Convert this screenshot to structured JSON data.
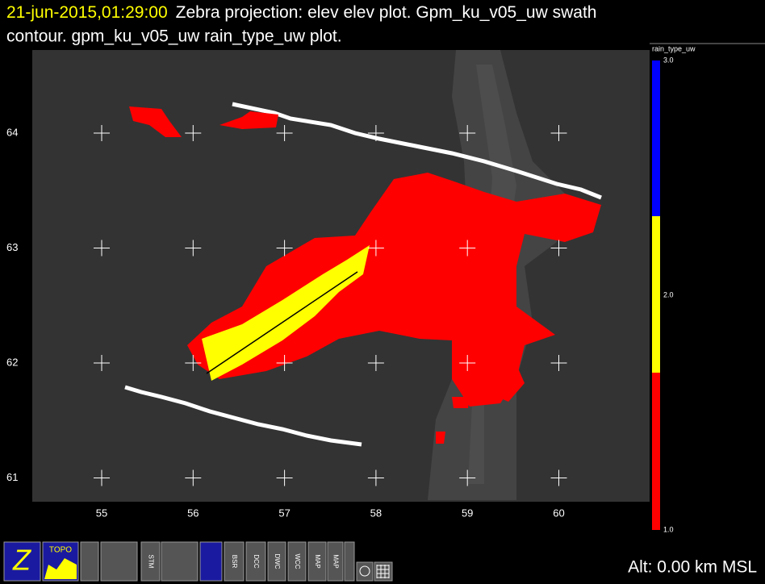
{
  "header": {
    "time": "21-jun-2015,01:29:00",
    "title_line1": "Zebra projection: elev elev  plot.  Gpm_ku_v05_uw swath",
    "title_line2": "contour.  gpm_ku_v05_uw rain_type_uw  plot."
  },
  "map": {
    "x_labels": [
      "55",
      "56",
      "57",
      "58",
      "59",
      "60"
    ],
    "y_labels": [
      "64",
      "63",
      "62",
      "61"
    ]
  },
  "colorbar": {
    "label": "rain_type_uw",
    "ticks": [
      "3.0",
      "2.0",
      "1.0"
    ]
  },
  "toolbar": {
    "buttons": [
      "TOPO",
      "STM",
      "BSR",
      "DCC",
      "DWC",
      "WCC",
      "MAP",
      "MAP"
    ]
  },
  "status": "Alt: 0.00 km MSL"
}
